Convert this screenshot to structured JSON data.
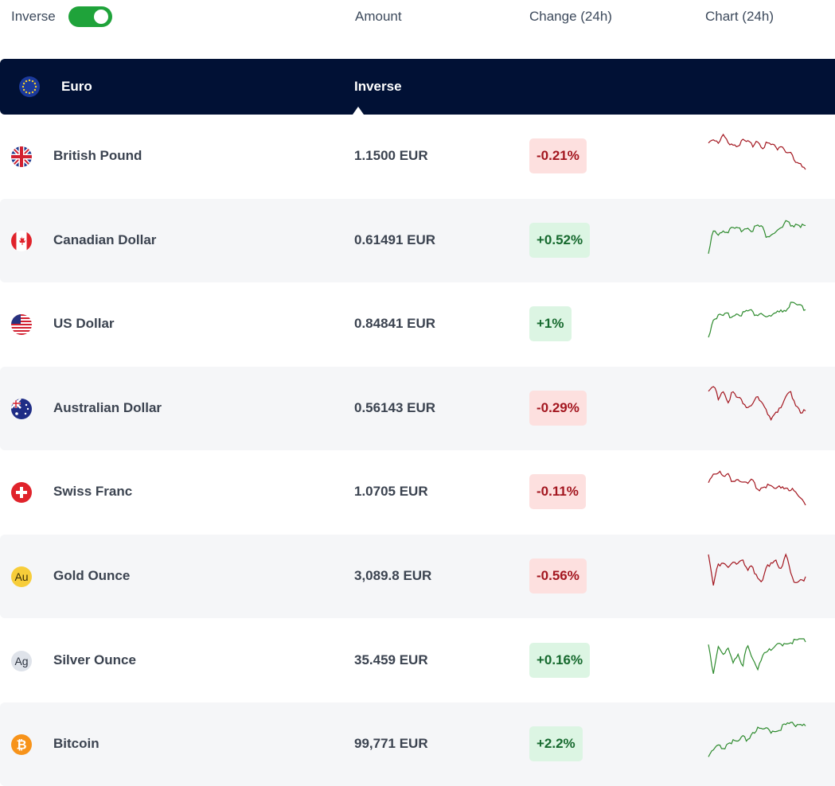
{
  "header": {
    "inverse_label": "Inverse",
    "inverse_on": true,
    "col_amount": "Amount",
    "col_change": "Change (24h)",
    "col_chart": "Chart (24h)"
  },
  "base": {
    "currency": "Euro",
    "mode_label": "Inverse",
    "flag": "eu-flag-icon"
  },
  "colors": {
    "negative_text": "#a3161f",
    "negative_bg": "#fde0df",
    "positive_text": "#16692e",
    "positive_bg": "#dcf5e3",
    "header_bg": "#011135",
    "toggle": "#1fa33a"
  },
  "rows": [
    {
      "name": "British Pound",
      "amount": "1.1500 EUR",
      "change": "-0.21%",
      "trend": "negative",
      "icon": "uk-flag-icon",
      "spark": [
        0.2,
        0.1,
        0.3,
        0.0,
        0.2,
        0.25,
        0.3,
        0.2,
        0.25,
        0.3,
        0.15,
        0.35,
        0.25,
        0.3,
        0.4,
        0.3,
        0.5,
        0.55,
        0.85,
        0.9,
        0.95
      ]
    },
    {
      "name": "Canadian Dollar",
      "amount": "0.61491 EUR",
      "change": "+0.52%",
      "trend": "positive",
      "icon": "canada-flag-icon",
      "spark": [
        1.0,
        0.35,
        0.4,
        0.32,
        0.35,
        0.3,
        0.33,
        0.28,
        0.25,
        0.3,
        0.2,
        0.25,
        0.5,
        0.45,
        0.35,
        0.3,
        0.1,
        0.2,
        0.15,
        0.2,
        0.25
      ]
    },
    {
      "name": "US Dollar",
      "amount": "0.84841 EUR",
      "change": "+1%",
      "trend": "positive",
      "icon": "us-flag-icon",
      "spark": [
        1.0,
        0.45,
        0.4,
        0.42,
        0.35,
        0.38,
        0.3,
        0.32,
        0.25,
        0.28,
        0.35,
        0.3,
        0.45,
        0.4,
        0.35,
        0.2,
        0.25,
        0.0,
        0.1,
        0.15,
        0.2
      ]
    },
    {
      "name": "Australian Dollar",
      "amount": "0.56143 EUR",
      "change": "-0.29%",
      "trend": "negative",
      "icon": "australia-flag-icon",
      "spark": [
        0.2,
        0.0,
        0.3,
        0.1,
        0.4,
        0.15,
        0.35,
        0.4,
        0.6,
        0.5,
        0.3,
        0.5,
        0.75,
        0.9,
        0.7,
        0.65,
        0.3,
        0.2,
        0.5,
        0.7,
        0.75
      ]
    },
    {
      "name": "Swiss Franc",
      "amount": "1.0705 EUR",
      "change": "-0.11%",
      "trend": "negative",
      "icon": "swiss-flag-icon",
      "spark": [
        0.3,
        0.1,
        0.0,
        0.2,
        0.15,
        0.3,
        0.25,
        0.35,
        0.4,
        0.3,
        0.55,
        0.5,
        0.45,
        0.5,
        0.6,
        0.45,
        0.5,
        0.55,
        0.7,
        0.85,
        0.95
      ]
    },
    {
      "name": "Gold Ounce",
      "amount": "3,089.8 EUR",
      "change": "-0.56%",
      "trend": "negative",
      "icon": "gold-icon",
      "spark": [
        0.0,
        0.9,
        0.3,
        0.2,
        0.35,
        0.25,
        0.3,
        0.2,
        0.4,
        0.3,
        0.7,
        0.85,
        0.4,
        0.2,
        0.15,
        0.5,
        0.0,
        0.6,
        0.8,
        0.65,
        0.7
      ]
    },
    {
      "name": "Silver Ounce",
      "amount": "35.459 EUR",
      "change": "+0.16%",
      "trend": "positive",
      "icon": "silver-icon",
      "spark": [
        0.1,
        1.0,
        0.2,
        0.5,
        0.3,
        0.7,
        0.4,
        0.8,
        0.2,
        0.6,
        0.9,
        0.5,
        0.3,
        0.4,
        0.2,
        0.15,
        0.1,
        0.05,
        0.1,
        0.0,
        0.05
      ]
    },
    {
      "name": "Bitcoin",
      "amount": "99,771 EUR",
      "change": "+2.2%",
      "trend": "positive",
      "icon": "bitcoin-icon",
      "spark": [
        1.0,
        0.8,
        0.7,
        0.75,
        0.6,
        0.55,
        0.6,
        0.45,
        0.5,
        0.3,
        0.2,
        0.25,
        0.2,
        0.25,
        0.2,
        0.15,
        0.1,
        0.0,
        0.05,
        0.0,
        0.05
      ]
    }
  ]
}
